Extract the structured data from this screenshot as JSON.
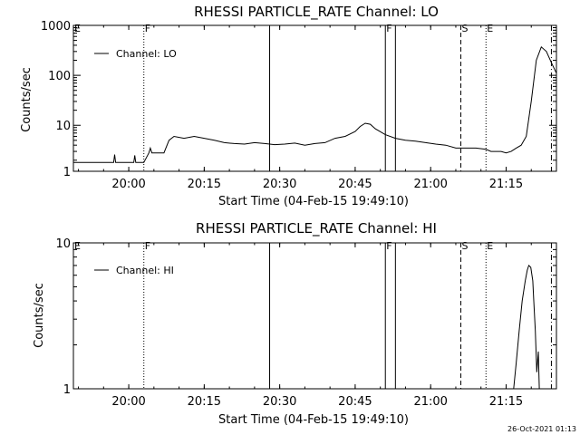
{
  "footer": {
    "timestamp": "26-Oct-2021 01:13"
  },
  "chart_data": [
    {
      "type": "line",
      "title": "RHESSI PARTICLE_RATE Channel: LO",
      "xlabel": "Start Time (04-Feb-15 19:49:10)",
      "ylabel": "Counts/sec",
      "y_scale": "log",
      "ylim": [
        1.2,
        1000
      ],
      "xlim_minutes_after_1949": [
        0,
        96
      ],
      "x_tick_labels": [
        "20:00",
        "20:15",
        "20:30",
        "20:45",
        "21:00",
        "21:15"
      ],
      "x_tick_minutes_after_1949": [
        11,
        26,
        41,
        56,
        71,
        86
      ],
      "y_tick_labels": [
        "1",
        "10",
        "100",
        "1000"
      ],
      "y_ticks": [
        1,
        10,
        100,
        1000
      ],
      "legend": {
        "placement": "top-left",
        "entries": [
          "Channel: LO"
        ]
      },
      "markers": [
        {
          "time": "19:49",
          "label": "E",
          "style": "none"
        },
        {
          "time": "20:03",
          "label": "F",
          "style": "dotted"
        },
        {
          "time": "20:28",
          "label": "",
          "style": "solid"
        },
        {
          "time": "20:51",
          "label": "F",
          "style": "solid"
        },
        {
          "time": "20:53",
          "label": "",
          "style": "solid"
        },
        {
          "time": "21:06",
          "label": "S",
          "style": "dashed"
        },
        {
          "time": "21:11",
          "label": "E",
          "style": "dotted"
        },
        {
          "time": "21:24",
          "label": "",
          "style": "dash-dot"
        }
      ],
      "series": [
        {
          "name": "Channel: LO",
          "x_minutes_after_1949": [
            0,
            8,
            8.2,
            8.4,
            10,
            11,
            12,
            12.2,
            12.4,
            14,
            15,
            15.3,
            15.6,
            17,
            18,
            19,
            20,
            22,
            24,
            26,
            28,
            30,
            32,
            34,
            36,
            38,
            40,
            42,
            44,
            46,
            48,
            50,
            52,
            54,
            56,
            57,
            58,
            59,
            60,
            62,
            64,
            66,
            68,
            70,
            72,
            74,
            76,
            78,
            80,
            82,
            83,
            84,
            85,
            86,
            87,
            88,
            89,
            90,
            91,
            92,
            93,
            94,
            95,
            96
          ],
          "values": [
            1.8,
            1.8,
            2.6,
            1.8,
            1.8,
            1.8,
            1.8,
            2.5,
            1.8,
            1.8,
            2.8,
            3.5,
            2.8,
            2.8,
            2.8,
            5,
            6,
            5.5,
            6,
            5.5,
            5,
            4.5,
            4.3,
            4.2,
            4.5,
            4.3,
            4.1,
            4.2,
            4.4,
            4.0,
            4.3,
            4.5,
            5.5,
            6,
            7.5,
            9.5,
            11,
            10.5,
            8.5,
            6.5,
            5.5,
            5,
            4.8,
            4.5,
            4.2,
            4.0,
            3.5,
            3.5,
            3.5,
            3.3,
            3.0,
            3.0,
            3.0,
            2.8,
            3.0,
            3.5,
            4,
            6,
            30,
            200,
            370,
            300,
            180,
            110
          ]
        }
      ]
    },
    {
      "type": "line",
      "title": "RHESSI PARTICLE_RATE Channel: HI",
      "xlabel": "Start Time (04-Feb-15 19:49:10)",
      "ylabel": "Counts/sec",
      "y_scale": "log",
      "ylim": [
        1,
        10
      ],
      "xlim_minutes_after_1949": [
        0,
        96
      ],
      "x_tick_labels": [
        "20:00",
        "20:15",
        "20:30",
        "20:45",
        "21:00",
        "21:15"
      ],
      "x_tick_minutes_after_1949": [
        11,
        26,
        41,
        56,
        71,
        86
      ],
      "y_tick_labels": [
        "1",
        "10"
      ],
      "y_ticks": [
        1,
        10
      ],
      "legend": {
        "placement": "top-left",
        "entries": [
          "Channel: HI"
        ]
      },
      "markers": [
        {
          "time": "19:49",
          "label": "E",
          "style": "none"
        },
        {
          "time": "20:03",
          "label": "F",
          "style": "dotted"
        },
        {
          "time": "20:28",
          "label": "",
          "style": "solid"
        },
        {
          "time": "20:51",
          "label": "F",
          "style": "solid"
        },
        {
          "time": "20:53",
          "label": "",
          "style": "solid"
        },
        {
          "time": "21:06",
          "label": "S",
          "style": "dashed"
        },
        {
          "time": "21:11",
          "label": "E",
          "style": "dotted"
        },
        {
          "time": "21:24",
          "label": "",
          "style": "dash-dot"
        }
      ],
      "series": [
        {
          "name": "Channel: HI",
          "x_minutes_after_1949": [
            87.5,
            88,
            88.6,
            89.2,
            89.8,
            90.2,
            90.5,
            90.9,
            91.3,
            91.5,
            91.8,
            92.1,
            92.4,
            92.6
          ],
          "values": [
            1,
            1.5,
            2.5,
            4,
            5.5,
            6.5,
            7,
            6.8,
            5.5,
            4,
            2.5,
            1.3,
            1.8,
            1
          ]
        }
      ]
    }
  ]
}
